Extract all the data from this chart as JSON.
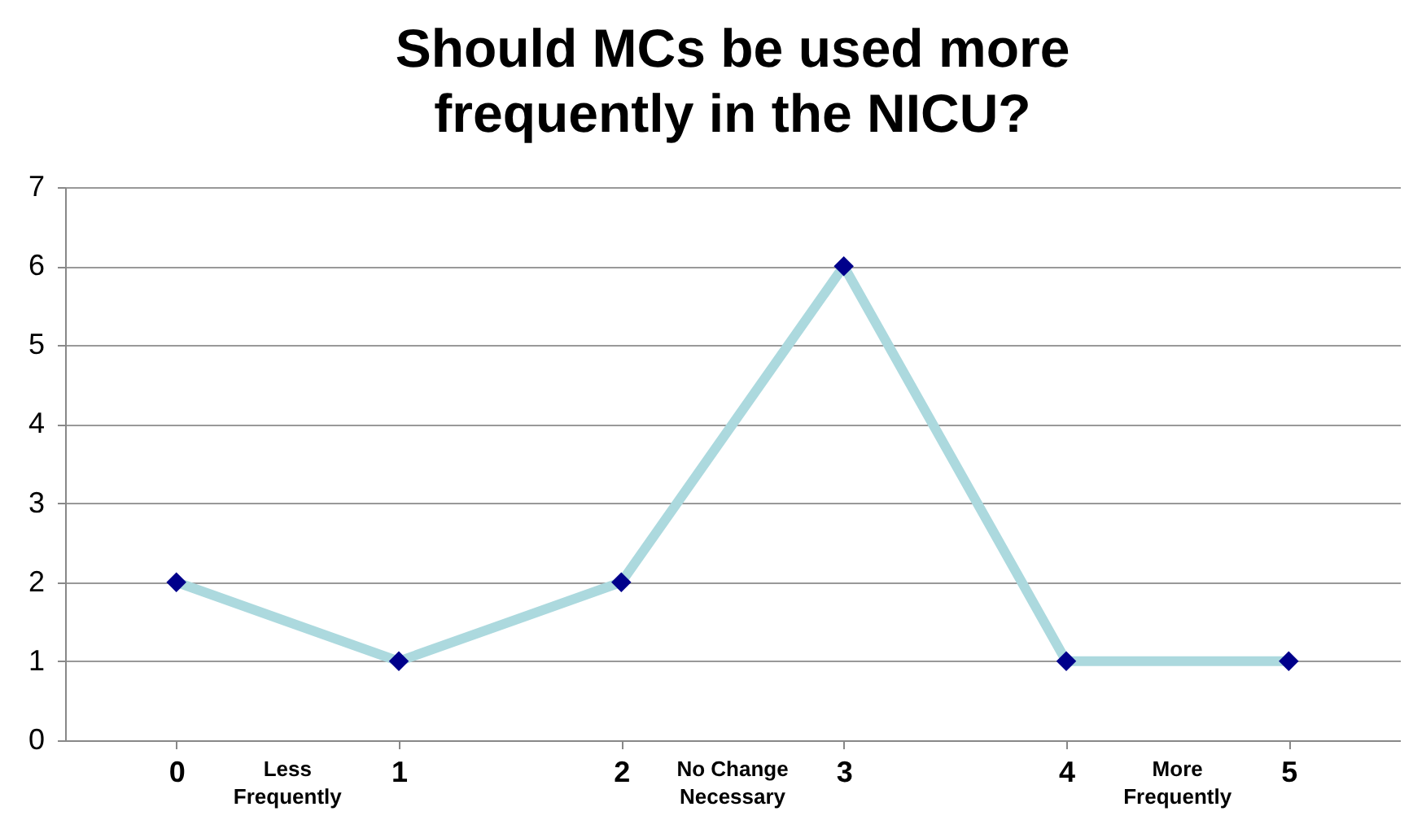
{
  "chart_data": {
    "type": "line",
    "title": "Should MCs be used more frequently in the NICU?",
    "categories": [
      "0",
      "1",
      "2",
      "3",
      "4",
      "5"
    ],
    "series": [
      {
        "color": "#acd9de",
        "colors": [
          "#00008b",
          "#00008b",
          "#00008b",
          "#00008b",
          "#00008b",
          "#00008b"
        ],
        "values": [
          2,
          1,
          2,
          6,
          1,
          1
        ]
      }
    ],
    "ylim": [
      0,
      7
    ],
    "yticks": [
      0,
      1,
      2,
      3,
      4,
      5,
      6,
      7
    ],
    "grid": "y",
    "marker": "diamond",
    "line_style": "solid",
    "annotations": [
      "Less Frequently",
      "No Change Necessary",
      "More Frequently"
    ]
  }
}
